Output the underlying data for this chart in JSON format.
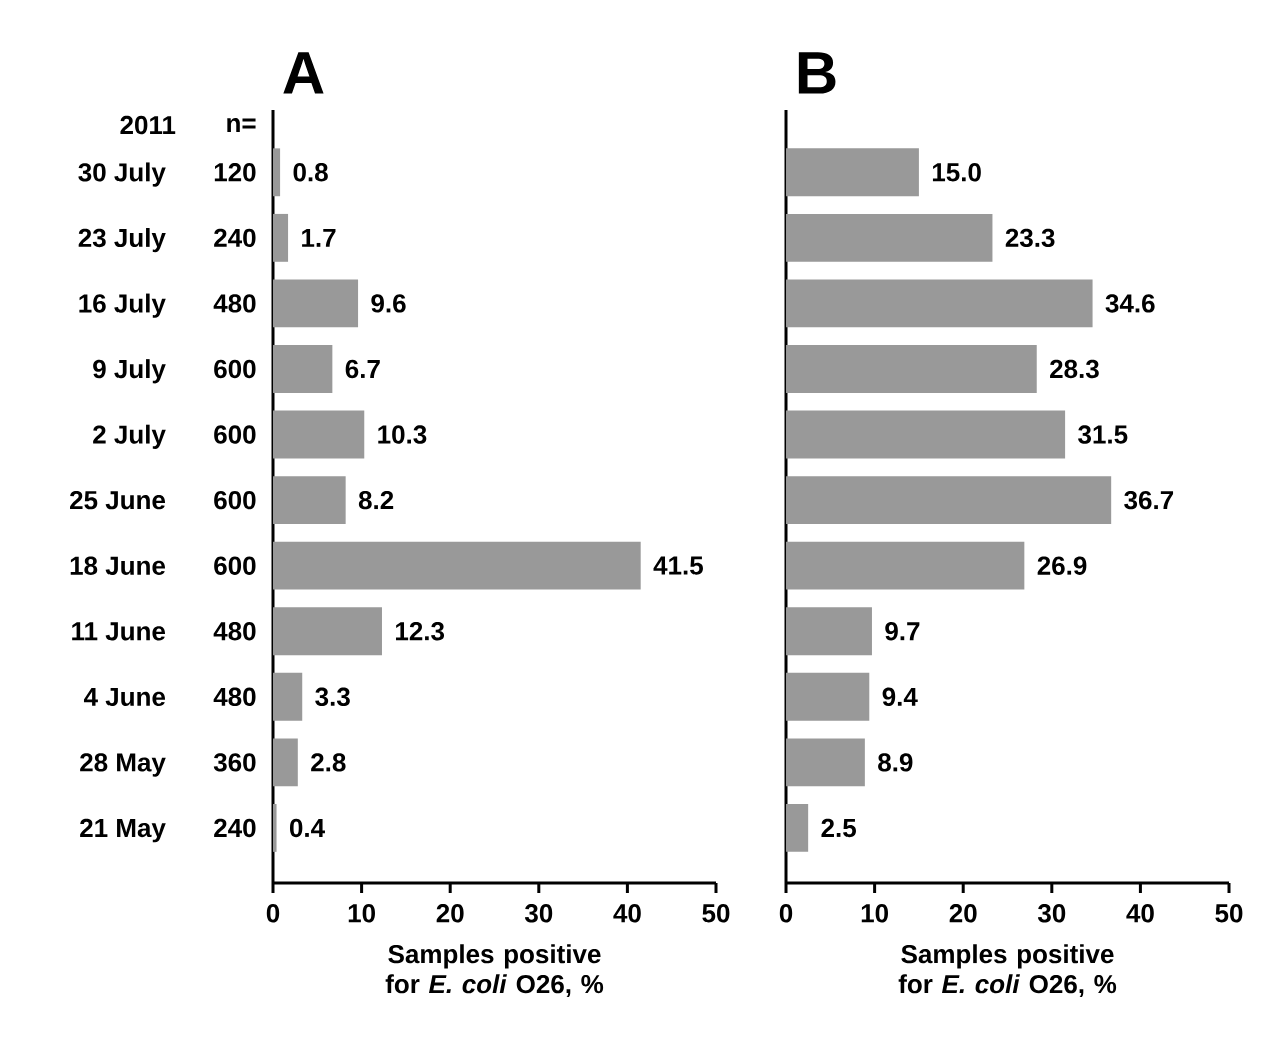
{
  "chart_data": [
    {
      "type": "bar",
      "orientation": "horizontal",
      "title": "A",
      "xlabel": "Samples positive for *E. coli* O26, %",
      "categories": [
        "30 July",
        "23 July",
        "16 July",
        "9 July",
        "2 July",
        "25 June",
        "18 June",
        "11 June",
        "4 June",
        "28 May",
        "21 May"
      ],
      "values": [
        0.8,
        1.7,
        9.6,
        6.7,
        10.3,
        8.2,
        41.5,
        12.3,
        3.3,
        2.8,
        0.4
      ],
      "value_labels": [
        "0.8",
        "1.7",
        "9.6",
        "6.7",
        "10.3",
        "8.2",
        "41.5",
        "12.3",
        "3.3",
        "2.8",
        "0.4"
      ],
      "color": "#999999",
      "xlim": [
        0,
        50
      ],
      "xticks": [
        0,
        10,
        20,
        30,
        40,
        50
      ],
      "annotations": [
        "2011",
        "n=",
        "120",
        "240",
        "480",
        "600",
        "600",
        "600",
        "600",
        "480",
        "480",
        "360",
        "240"
      ]
    },
    {
      "type": "bar",
      "orientation": "horizontal",
      "title": "B",
      "xlabel": "Samples positive for *E. coli* O26, %",
      "categories": [
        null,
        null,
        null,
        null,
        null,
        null,
        null,
        null,
        null,
        null,
        null
      ],
      "values": [
        15.0,
        23.3,
        34.6,
        28.3,
        31.5,
        36.7,
        26.9,
        9.7,
        9.4,
        8.9,
        2.5
      ],
      "value_labels": [
        "15.0",
        "23.3",
        "34.6",
        "28.3",
        "31.5",
        "36.7",
        "26.9",
        "9.7",
        "9.4",
        "8.9",
        "2.5"
      ],
      "color": "#999999",
      "xlim": [
        0,
        50
      ],
      "xticks": [
        0,
        10,
        20,
        30,
        40,
        50
      ]
    }
  ]
}
